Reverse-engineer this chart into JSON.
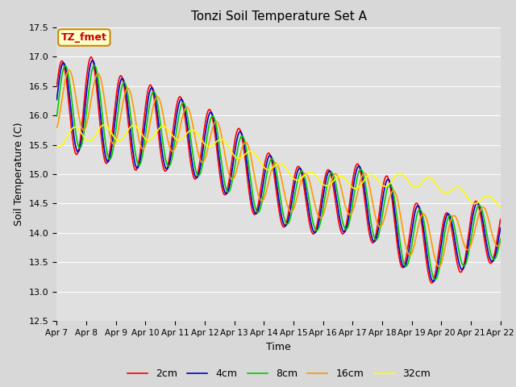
{
  "title": "Tonzi Soil Temperature Set A",
  "xlabel": "Time",
  "ylabel": "Soil Temperature (C)",
  "ylim": [
    12.5,
    17.5
  ],
  "series_labels": [
    "2cm",
    "4cm",
    "8cm",
    "16cm",
    "32cm"
  ],
  "series_colors": [
    "#ff0000",
    "#0000cc",
    "#00cc00",
    "#ff9900",
    "#ffff00"
  ],
  "series_linewidths": [
    1.2,
    1.2,
    1.2,
    1.2,
    1.2
  ],
  "tick_labels": [
    "Apr 7",
    "Apr 8",
    "Apr 9",
    "Apr 10",
    "Apr 11",
    "Apr 12",
    "Apr 13",
    "Apr 14",
    "Apr 15",
    "Apr 16",
    "Apr 17",
    "Apr 18",
    "Apr 19",
    "Apr 20",
    "Apr 21",
    "Apr 22"
  ],
  "annotation_text": "TZ_fmet",
  "annotation_color": "#cc0000",
  "annotation_bg": "#ffffcc",
  "bg_color": "#e0e0e0",
  "grid_color": "#ffffff",
  "n_points": 1500
}
